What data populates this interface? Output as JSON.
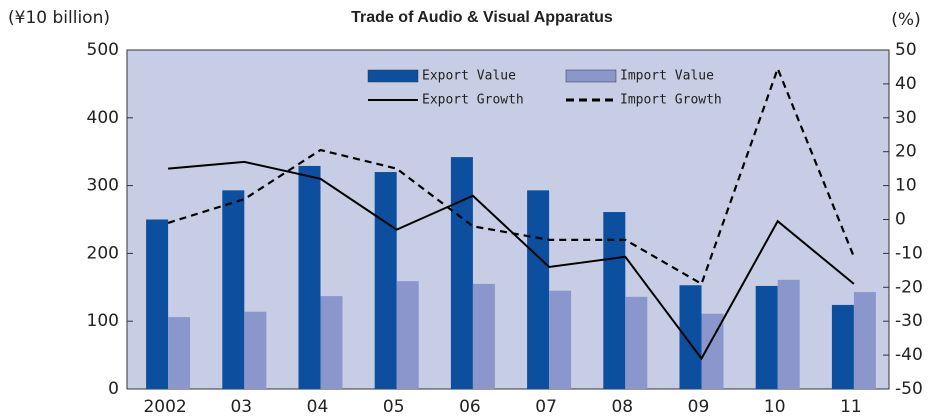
{
  "chart_data": {
    "type": "bar",
    "title": "Trade of Audio & Visual Apparatus",
    "y_label": "(¥10 billion)",
    "y2_label": "(%)",
    "categories": [
      "2002",
      "03",
      "04",
      "05",
      "06",
      "07",
      "08",
      "09",
      "10",
      "11"
    ],
    "series": [
      {
        "name": "Export Value",
        "type": "bar",
        "color": "#0b4f9e",
        "values": [
          250,
          293,
          329,
          320,
          342,
          293,
          261,
          153,
          152,
          124
        ]
      },
      {
        "name": "Import Value",
        "type": "bar",
        "color": "#8b97cc",
        "values": [
          106,
          114,
          137,
          159,
          155,
          145,
          136,
          111,
          161,
          143
        ]
      },
      {
        "name": "Export Growth",
        "type": "line",
        "axis": "y2",
        "color": "#000000",
        "dashed": false,
        "values": [
          15,
          17,
          12,
          -3,
          7,
          -14,
          -11,
          -41,
          -0.5,
          -19
        ]
      },
      {
        "name": "Import Growth",
        "type": "line",
        "axis": "y2",
        "color": "#000000",
        "dashed": true,
        "values": [
          -1,
          6,
          20.5,
          15,
          -2,
          -6,
          -6,
          -19,
          44.5,
          -11
        ]
      }
    ],
    "ylim": [
      0,
      500
    ],
    "yticks": [
      0,
      100,
      200,
      300,
      400,
      500
    ],
    "y2lim": [
      -50,
      50
    ],
    "y2ticks": [
      -50,
      -40,
      -30,
      -20,
      -10,
      0,
      10,
      20,
      30,
      40,
      50
    ],
    "grid": false,
    "legend": "top",
    "plot_background": "#c8cde6"
  }
}
